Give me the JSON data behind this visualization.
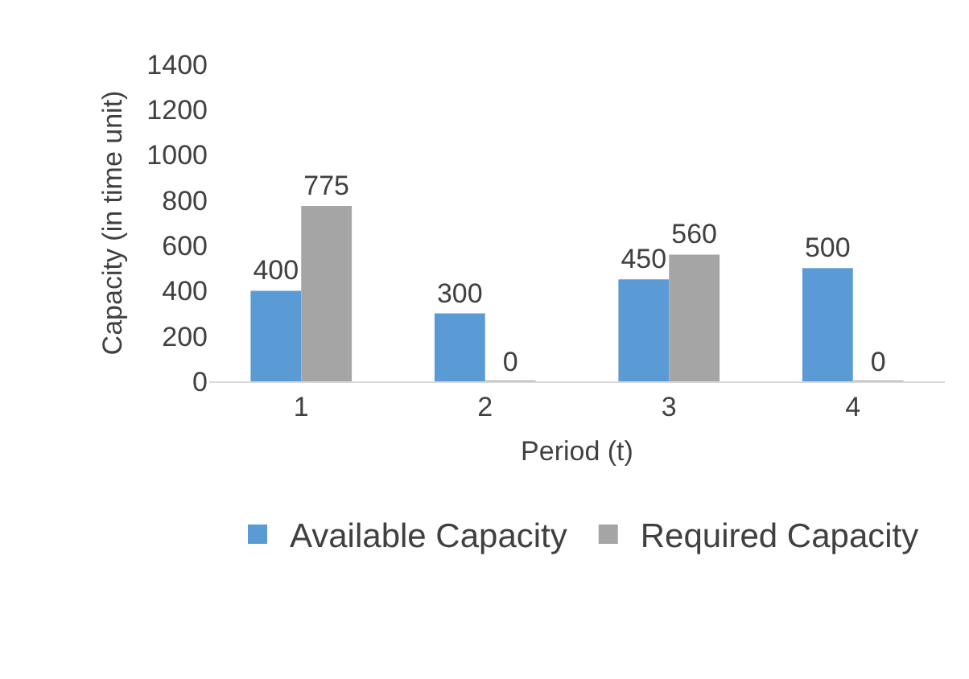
{
  "chart_data": {
    "type": "bar",
    "xlabel": "Period (t)",
    "ylabel": "Capacity (in time unit)",
    "categories": [
      "1",
      "2",
      "3",
      "4"
    ],
    "series": [
      {
        "name": "Available Capacity",
        "color": "#5b9bd5",
        "values": [
          400,
          300,
          450,
          500
        ]
      },
      {
        "name": "Required Capacity",
        "color": "#a5a5a5",
        "values": [
          775,
          0,
          560,
          0
        ]
      }
    ],
    "ylim": [
      0,
      1400
    ],
    "yticks": [
      0,
      200,
      400,
      600,
      800,
      1000,
      1200,
      1400
    ],
    "grid": false,
    "legend": "bottom",
    "data_labels": true
  }
}
